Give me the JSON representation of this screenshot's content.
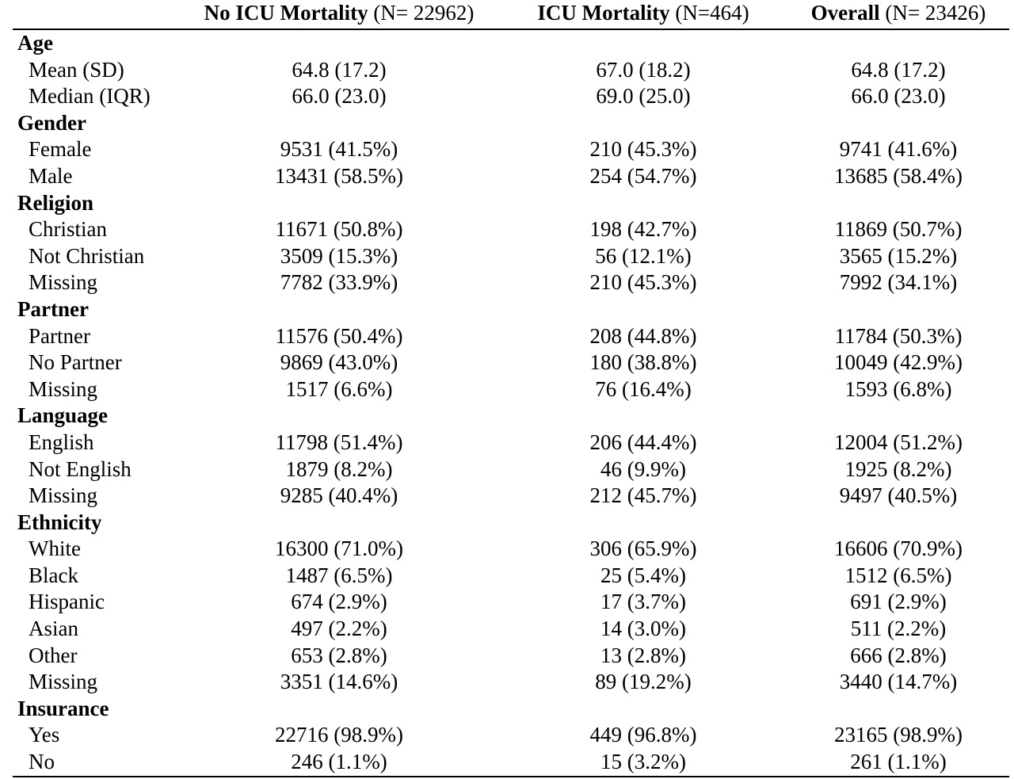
{
  "header": {
    "col0": "",
    "col1_bold": "No ICU Mortality",
    "col1_rest": " (N= 22962)",
    "col2_bold": "ICU Mortality",
    "col2_rest": " (N=464)",
    "col3_bold": "Overall",
    "col3_rest": " (N= 23426)"
  },
  "groups": [
    {
      "title": "Age",
      "rows": [
        {
          "label": "Mean (SD)",
          "v1": "64.8 (17.2)",
          "v2": "67.0 (18.2)",
          "v3": "64.8 (17.2)"
        },
        {
          "label": "Median (IQR)",
          "v1": "66.0 (23.0)",
          "v2": "69.0 (25.0)",
          "v3": "66.0 (23.0)"
        }
      ]
    },
    {
      "title": "Gender",
      "rows": [
        {
          "label": "Female",
          "v1": "9531 (41.5%)",
          "v2": "210 (45.3%)",
          "v3": "9741 (41.6%)"
        },
        {
          "label": "Male",
          "v1": "13431 (58.5%)",
          "v2": "254 (54.7%)",
          "v3": "13685 (58.4%)"
        }
      ]
    },
    {
      "title": "Religion",
      "rows": [
        {
          "label": "Christian",
          "v1": "11671 (50.8%)",
          "v2": "198 (42.7%)",
          "v3": "11869 (50.7%)"
        },
        {
          "label": "Not Christian",
          "v1": "3509 (15.3%)",
          "v2": "56 (12.1%)",
          "v3": "3565 (15.2%)"
        },
        {
          "label": "Missing",
          "v1": "7782 (33.9%)",
          "v2": "210 (45.3%)",
          "v3": "7992 (34.1%)"
        }
      ]
    },
    {
      "title": "Partner",
      "rows": [
        {
          "label": "Partner",
          "v1": "11576 (50.4%)",
          "v2": "208 (44.8%)",
          "v3": "11784 (50.3%)"
        },
        {
          "label": "No Partner",
          "v1": "9869 (43.0%)",
          "v2": "180 (38.8%)",
          "v3": "10049 (42.9%)"
        },
        {
          "label": "Missing",
          "v1": "1517 (6.6%)",
          "v2": "76 (16.4%)",
          "v3": "1593 (6.8%)"
        }
      ]
    },
    {
      "title": "Language",
      "rows": [
        {
          "label": "English",
          "v1": "11798 (51.4%)",
          "v2": "206 (44.4%)",
          "v3": "12004 (51.2%)"
        },
        {
          "label": "Not English",
          "v1": "1879 (8.2%)",
          "v2": "46 (9.9%)",
          "v3": "1925 (8.2%)"
        },
        {
          "label": "Missing",
          "v1": "9285 (40.4%)",
          "v2": "212 (45.7%)",
          "v3": "9497 (40.5%)"
        }
      ]
    },
    {
      "title": "Ethnicity",
      "rows": [
        {
          "label": "White",
          "v1": "16300 (71.0%)",
          "v2": "306 (65.9%)",
          "v3": "16606 (70.9%)"
        },
        {
          "label": "Black",
          "v1": "1487 (6.5%)",
          "v2": "25 (5.4%)",
          "v3": "1512 (6.5%)"
        },
        {
          "label": "Hispanic",
          "v1": "674 (2.9%)",
          "v2": "17 (3.7%)",
          "v3": "691 (2.9%)"
        },
        {
          "label": "Asian",
          "v1": "497 (2.2%)",
          "v2": "14 (3.0%)",
          "v3": "511 (2.2%)"
        },
        {
          "label": "Other",
          "v1": "653 (2.8%)",
          "v2": "13 (2.8%)",
          "v3": "666 (2.8%)"
        },
        {
          "label": "Missing",
          "v1": "3351 (14.6%)",
          "v2": "89 (19.2%)",
          "v3": "3440 (14.7%)"
        }
      ]
    },
    {
      "title": "Insurance",
      "rows": [
        {
          "label": "Yes",
          "v1": "22716 (98.9%)",
          "v2": "449 (96.8%)",
          "v3": "23165 (98.9%)"
        },
        {
          "label": "No",
          "v1": "246 (1.1%)",
          "v2": "15 (3.2%)",
          "v3": "261 (1.1%)"
        }
      ]
    }
  ]
}
